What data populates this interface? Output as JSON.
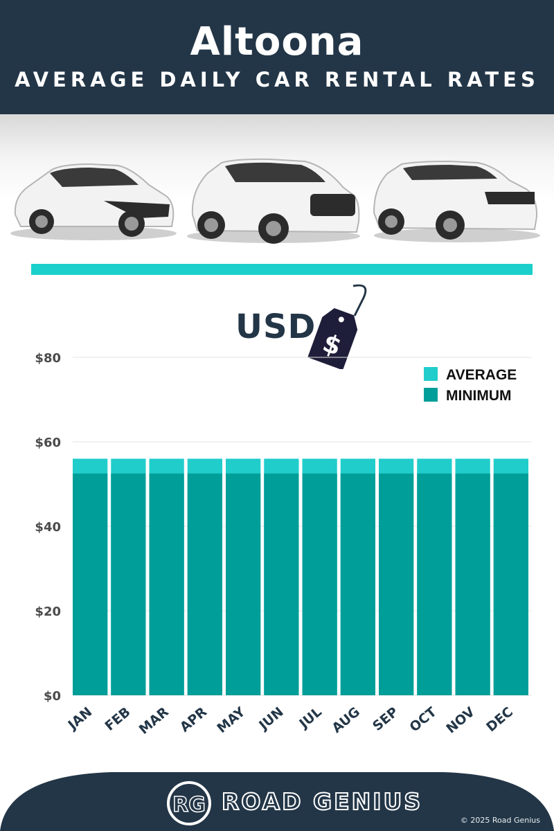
{
  "header": {
    "title": "Altoona",
    "subtitle": "AVERAGE DAILY CAR RENTAL RATES"
  },
  "currency_label": "USD",
  "tag_symbol": "$",
  "chart_data": {
    "type": "bar",
    "stacked_overlay": true,
    "categories": [
      "JAN",
      "FEB",
      "MAR",
      "APR",
      "MAY",
      "JUN",
      "JUL",
      "AUG",
      "SEP",
      "OCT",
      "NOV",
      "DEC"
    ],
    "series": [
      {
        "name": "AVERAGE",
        "values": [
          56,
          56,
          56,
          56,
          56,
          56,
          56,
          56,
          56,
          56,
          56,
          56
        ],
        "color": "#20cdcb"
      },
      {
        "name": "MINIMUM",
        "values": [
          52.5,
          52.5,
          52.5,
          52.5,
          52.5,
          52.5,
          52.5,
          52.5,
          52.5,
          52.5,
          52.5,
          52.5
        ],
        "color": "#009e98"
      }
    ],
    "ylim": [
      0,
      80
    ],
    "yticks": [
      0,
      20,
      40,
      60,
      80
    ],
    "ytick_labels": [
      "$0",
      "$20",
      "$40",
      "$60",
      "$80"
    ],
    "grid": true,
    "legend_position": "top-right"
  },
  "colors": {
    "navy": "#233647",
    "accent": "#1bcfcb"
  },
  "footer": {
    "logo_mark": "RG",
    "brand": "ROAD GENIUS",
    "copyright": "© 2025 Road Genius"
  }
}
